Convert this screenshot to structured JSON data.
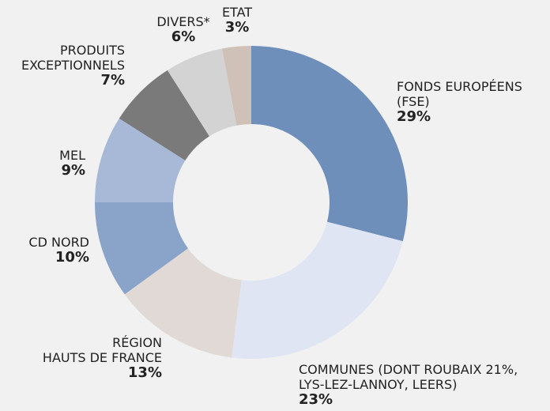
{
  "chart_data": {
    "type": "donut",
    "categories": [
      "FONDS EUROPÉENS\n(FSE)",
      "COMMUNES (DONT ROUBAIX 21%,\nLYS-LEZ-LANNOY, LEERS)",
      "RÉGION\nHAUTS DE FRANCE",
      "CD NORD",
      "MEL",
      "PRODUITS\nEXCEPTIONNELS",
      "DIVERS*",
      "ETAT"
    ],
    "values": [
      29,
      23,
      13,
      10,
      9,
      7,
      6,
      3
    ],
    "value_labels": [
      "29%",
      "23%",
      "13%",
      "10%",
      "9%",
      "7%",
      "6%",
      "3%"
    ],
    "colors": [
      "#6d8fba",
      "#dfe5f2",
      "#e1d9d6",
      "#8aa3c9",
      "#a8b9d8",
      "#7a7a7a",
      "#d3d3d3",
      "#cfc0b8"
    ]
  }
}
